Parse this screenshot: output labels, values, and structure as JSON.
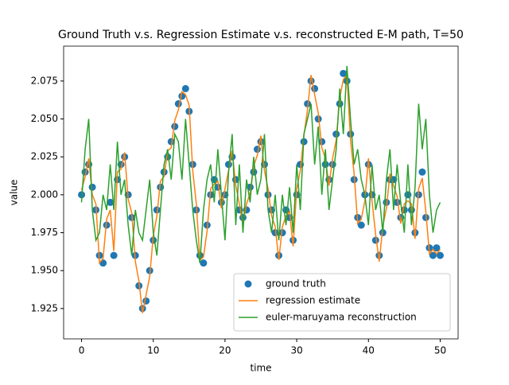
{
  "chart_data": {
    "type": "line",
    "title": "Ground Truth v.s. Regression Estimate v.s. reconstructed E-M path, T=50",
    "xlabel": "time",
    "ylabel": "value",
    "x": [
      0,
      0.5,
      1,
      1.5,
      2,
      2.5,
      3,
      3.5,
      4,
      4.5,
      5,
      5.5,
      6,
      6.5,
      7,
      7.5,
      8,
      8.5,
      9,
      9.5,
      10,
      10.5,
      11,
      11.5,
      12,
      12.5,
      13,
      13.5,
      14,
      14.5,
      15,
      15.5,
      16,
      16.5,
      17,
      17.5,
      18,
      18.5,
      19,
      19.5,
      20,
      20.5,
      21,
      21.5,
      22,
      22.5,
      23,
      23.5,
      24,
      24.5,
      25,
      25.5,
      26,
      26.5,
      27,
      27.5,
      28,
      28.5,
      29,
      29.5,
      30,
      30.5,
      31,
      31.5,
      32,
      32.5,
      33,
      33.5,
      34,
      34.5,
      35,
      35.5,
      36,
      36.5,
      37,
      37.5,
      38,
      38.5,
      39,
      39.5,
      40,
      40.5,
      41,
      41.5,
      42,
      42.5,
      43,
      43.5,
      44,
      44.5,
      45,
      45.5,
      46,
      46.5,
      47,
      47.5,
      48,
      48.5,
      49,
      49.5,
      50
    ],
    "series": [
      {
        "name": "ground truth",
        "color": "#1f77b4",
        "style": "markers",
        "values": [
          2.0,
          2.015,
          2.02,
          2.005,
          1.99,
          1.96,
          1.955,
          1.98,
          1.995,
          1.96,
          2.01,
          2.02,
          2.025,
          2.0,
          1.985,
          1.96,
          1.94,
          1.925,
          1.93,
          1.95,
          1.97,
          1.99,
          2.005,
          2.015,
          2.025,
          2.035,
          2.045,
          2.06,
          2.065,
          2.07,
          2.055,
          2.02,
          1.99,
          1.96,
          1.955,
          1.98,
          2.0,
          2.01,
          2.005,
          1.995,
          2.0,
          2.02,
          2.025,
          2.01,
          1.99,
          1.985,
          1.99,
          2.005,
          2.015,
          2.03,
          2.035,
          2.02,
          2.0,
          1.99,
          1.975,
          1.96,
          1.975,
          1.99,
          1.985,
          1.97,
          2.0,
          2.02,
          2.035,
          2.06,
          2.075,
          2.07,
          2.05,
          2.035,
          2.02,
          2.01,
          2.02,
          2.04,
          2.06,
          2.08,
          2.075,
          2.04,
          2.01,
          1.985,
          1.98,
          2.0,
          2.02,
          2.0,
          1.97,
          1.96,
          1.975,
          1.995,
          2.01,
          2.01,
          1.995,
          1.985,
          1.99,
          2.0,
          1.99,
          1.975,
          2.0,
          2.015,
          1.985,
          1.965,
          1.96,
          1.965,
          1.96
        ]
      },
      {
        "name": "regression estimate",
        "color": "#ff7f0e",
        "style": "line",
        "values": [
          2.003,
          2.012,
          2.024,
          2.0,
          1.994,
          1.955,
          1.958,
          1.984,
          1.99,
          1.963,
          2.015,
          2.017,
          2.028,
          1.997,
          1.988,
          1.956,
          1.943,
          1.922,
          1.934,
          1.946,
          1.973,
          1.986,
          2.009,
          2.012,
          2.029,
          2.031,
          2.049,
          2.056,
          2.068,
          2.066,
          2.059,
          2.016,
          1.994,
          1.957,
          1.959,
          1.976,
          2.004,
          2.007,
          2.009,
          1.991,
          2.004,
          2.016,
          2.029,
          2.006,
          1.994,
          1.981,
          1.994,
          2.001,
          2.019,
          2.026,
          2.039,
          2.016,
          2.004,
          1.986,
          1.979,
          1.957,
          1.979,
          1.986,
          1.989,
          1.966,
          2.004,
          2.016,
          2.039,
          2.056,
          2.079,
          2.066,
          2.054,
          2.031,
          2.024,
          2.006,
          2.024,
          2.036,
          2.064,
          2.076,
          2.079,
          2.036,
          2.014,
          1.981,
          1.984,
          1.996,
          2.024,
          1.996,
          1.974,
          1.956,
          1.979,
          1.991,
          2.014,
          2.006,
          1.999,
          1.981,
          1.994,
          1.996,
          1.994,
          1.971,
          2.004,
          2.011,
          1.989,
          1.961,
          1.964,
          1.961,
          1.964
        ]
      },
      {
        "name": "euler-maruyama reconstruction",
        "color": "#2ca02c",
        "style": "line",
        "values": [
          1.995,
          2.03,
          2.05,
          1.99,
          1.97,
          1.975,
          2.0,
          1.99,
          2.02,
          1.99,
          2.035,
          2.0,
          2.01,
          1.98,
          1.96,
          1.99,
          1.975,
          1.97,
          1.99,
          2.01,
          1.975,
          1.96,
          1.99,
          2.02,
          2.03,
          2.01,
          2.04,
          2.035,
          2.01,
          2.05,
          2.02,
          1.99,
          1.97,
          1.955,
          1.99,
          2.01,
          2.02,
          1.995,
          2.03,
          2.0,
          1.97,
          2.015,
          2.04,
          1.98,
          2.02,
          1.975,
          2.01,
          1.995,
          2.025,
          2.0,
          2.01,
          2.04,
          1.99,
          1.975,
          2.0,
          1.97,
          2.0,
          1.98,
          2.005,
          1.975,
          2.02,
          1.99,
          2.04,
          2.05,
          2.06,
          2.02,
          2.045,
          2.0,
          2.03,
          1.99,
          2.01,
          2.03,
          2.07,
          2.04,
          2.085,
          2.05,
          2.02,
          2.03,
          2.01,
          2.0,
          1.98,
          2.02,
          1.99,
          2.0,
          1.975,
          2.01,
          2.03,
          1.99,
          2.02,
          1.995,
          1.975,
          2.02,
          1.98,
          2.005,
          2.06,
          2.03,
          2.05,
          2.0,
          1.975,
          1.99,
          1.995
        ]
      }
    ],
    "xlim": [
      -2.5,
      52.5
    ],
    "xticks": [
      0,
      10,
      20,
      30,
      40,
      50
    ],
    "ylim": [
      1.905,
      2.098
    ],
    "yticks": [
      1.925,
      {
        "value": 1.95,
        "label": "1.950"
      },
      1.975,
      {
        "value": 2.0,
        "label": "2.000"
      },
      2.025,
      {
        "value": 2.05,
        "label": "2.050"
      },
      2.075
    ],
    "legend": "lower right"
  }
}
